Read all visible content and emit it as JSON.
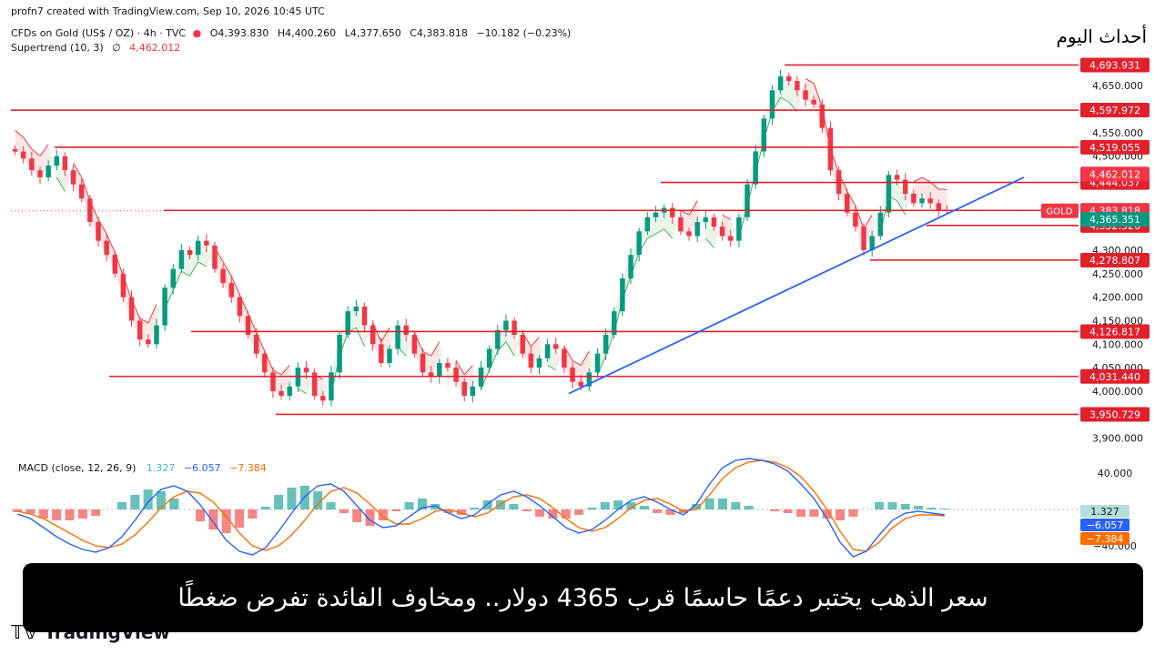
{
  "header": {
    "credit": "profn7 created with TradingView.com, Sep 10, 2026 10:45 UTC",
    "symbol": "CFDs on Gold (US$ / OZ) · 4h · TVC",
    "open": "O4,393.830",
    "high": "H4,400.260",
    "low": "L4,377.650",
    "close": "C4,383.818",
    "change": "−10.182 (−0.23%)",
    "supertrend_label": "Supertrend (10, 3)",
    "supertrend_symbol": "∅",
    "supertrend_value": "4,462.012"
  },
  "brand": "أحداث اليوم",
  "footer_logo": "TradingView",
  "headline": "سعر الذهب يختبر دعمًا حاسمًا قرب 4365 دولار.. ومخاوف الفائدة تفرض ضغطًا",
  "macd_header": {
    "label": "MACD (close, 12, 26, 9)",
    "hist": "1.327",
    "macd": "−6.057",
    "signal": "−7.384"
  },
  "colors": {
    "up": "#089981",
    "down": "#f23645",
    "level_line": "#e0202c",
    "trendline": "#2962ff",
    "macd_line": "#2962ff",
    "signal_line": "#ff6d00",
    "st_up": "#4caf50",
    "st_down": "#e53935"
  },
  "chart_data": [
    {
      "type": "line",
      "title": "CFDs on Gold (US$ / OZ) · 4h · TVC",
      "ylim": [
        3880,
        4720
      ],
      "price_ticks": [
        3900,
        4000,
        4050,
        4100,
        4150,
        4200,
        4250,
        4300,
        4500,
        4550,
        4650
      ],
      "price_tick_labels": [
        "3,900.000",
        "4,000.000",
        "4,050.000",
        "4,100.000",
        "4,150.000",
        "4,200.000",
        "4,250.000",
        "4,300.000",
        "4,500.000",
        "4,550.000",
        "4,650.000"
      ],
      "series": [
        {
          "values": [
            4510,
            4495,
            4470,
            4455,
            4480,
            4500,
            4470,
            4440,
            4410,
            4360,
            4320,
            4290,
            4250,
            4200,
            4150,
            4110,
            4100,
            4140,
            4220,
            4260,
            4300,
            4290,
            4320,
            4310,
            4260,
            4230,
            4200,
            4160,
            4120,
            4080,
            4040,
            4000,
            3990,
            4010,
            4050,
            4040,
            3990,
            3980,
            4040,
            4120,
            4170,
            4180,
            4140,
            4100,
            4060,
            4090,
            4140,
            4120,
            4080,
            4040,
            4030,
            4060,
            4050,
            4020,
            3990,
            4010,
            4050,
            4090,
            4130,
            4150,
            4120,
            4080,
            4050,
            4070,
            4100,
            4090,
            4050,
            4020,
            4010,
            4040,
            4080,
            4120,
            4170,
            4240,
            4290,
            4340,
            4370,
            4380,
            4390,
            4370,
            4340,
            4330,
            4360,
            4370,
            4350,
            4330,
            4320,
            4370,
            4440,
            4510,
            4580,
            4640,
            4670,
            4660,
            4640,
            4620,
            4610,
            4560,
            4470,
            4420,
            4380,
            4350,
            4300,
            4330,
            4380,
            4460,
            4450,
            4420,
            4400,
            4410,
            4400,
            4385,
            4384
          ]
        }
      ],
      "levels": [
        "4,693.931",
        "4,597.972",
        "4,519.055",
        "4,444.037",
        "4,384.680",
        "4,352.526",
        "4,278.807",
        "4,126.817",
        "4,031.440",
        "3,950.729"
      ],
      "level_values": [
        4693.931,
        4597.972,
        4519.055,
        4444.037,
        4384.68,
        4352.526,
        4278.807,
        4126.817,
        4031.44,
        3950.729
      ],
      "supertrend_label": "4,462.012",
      "supertrend_value": 4462.012,
      "last_price_label": "4,383.818",
      "last_price_value": 4383.818,
      "last_price_symbol": "GOLD",
      "support_label": "4,365.351",
      "support_value": 4365.351
    },
    {
      "type": "line",
      "title": "MACD (close, 12, 26, 9)",
      "ylim": [
        -55,
        55
      ],
      "tick_labels": [
        "40.000",
        "−40.000"
      ],
      "tick_values": [
        40,
        -40
      ],
      "value_labels": [
        "1.327",
        "−6.057",
        "−7.384"
      ],
      "value_numbers": [
        1.327,
        -6.057,
        -7.384
      ],
      "series": [
        {
          "name": "MACD",
          "values": [
            -5,
            -10,
            -20,
            -30,
            -38,
            -44,
            -47,
            -42,
            -30,
            -12,
            8,
            22,
            26,
            20,
            5,
            -14,
            -34,
            -46,
            -50,
            -42,
            -24,
            -4,
            14,
            26,
            28,
            20,
            4,
            -12,
            -20,
            -18,
            -8,
            2,
            4,
            -4,
            -10,
            -6,
            6,
            16,
            20,
            14,
            4,
            -8,
            -20,
            -26,
            -22,
            -12,
            0,
            10,
            14,
            8,
            0,
            -6,
            6,
            28,
            46,
            54,
            56,
            54,
            50,
            42,
            28,
            12,
            -10,
            -36,
            -52,
            -46,
            -28,
            -12,
            -4,
            -2,
            -4,
            -6
          ]
        },
        {
          "name": "Signal",
          "values": [
            -2,
            -5,
            -10,
            -18,
            -26,
            -34,
            -40,
            -42,
            -38,
            -28,
            -14,
            2,
            14,
            20,
            18,
            8,
            -8,
            -26,
            -40,
            -45,
            -40,
            -28,
            -12,
            6,
            20,
            24,
            18,
            6,
            -8,
            -16,
            -16,
            -10,
            -2,
            0,
            -4,
            -8,
            -4,
            6,
            14,
            16,
            12,
            2,
            -10,
            -20,
            -24,
            -20,
            -10,
            2,
            10,
            12,
            6,
            -2,
            0,
            16,
            34,
            46,
            52,
            54,
            52,
            46,
            36,
            20,
            0,
            -24,
            -44,
            -46,
            -36,
            -20,
            -10,
            -6,
            -6,
            -7
          ]
        },
        {
          "name": "Histogram",
          "values": [
            -3,
            -5,
            -10,
            -12,
            -12,
            -10,
            -7,
            0,
            8,
            16,
            22,
            20,
            12,
            0,
            -13,
            -22,
            -26,
            -20,
            -10,
            3,
            16,
            24,
            26,
            20,
            8,
            -4,
            -14,
            -18,
            -12,
            -2,
            8,
            12,
            6,
            -4,
            -6,
            2,
            10,
            10,
            6,
            -2,
            -8,
            -10,
            -10,
            -6,
            2,
            8,
            10,
            8,
            4,
            -4,
            -6,
            -4,
            6,
            12,
            12,
            8,
            4,
            0,
            -2,
            -4,
            -8,
            -8,
            -10,
            -12,
            -8,
            0,
            8,
            8,
            6,
            4,
            2,
            1
          ]
        }
      ]
    }
  ]
}
